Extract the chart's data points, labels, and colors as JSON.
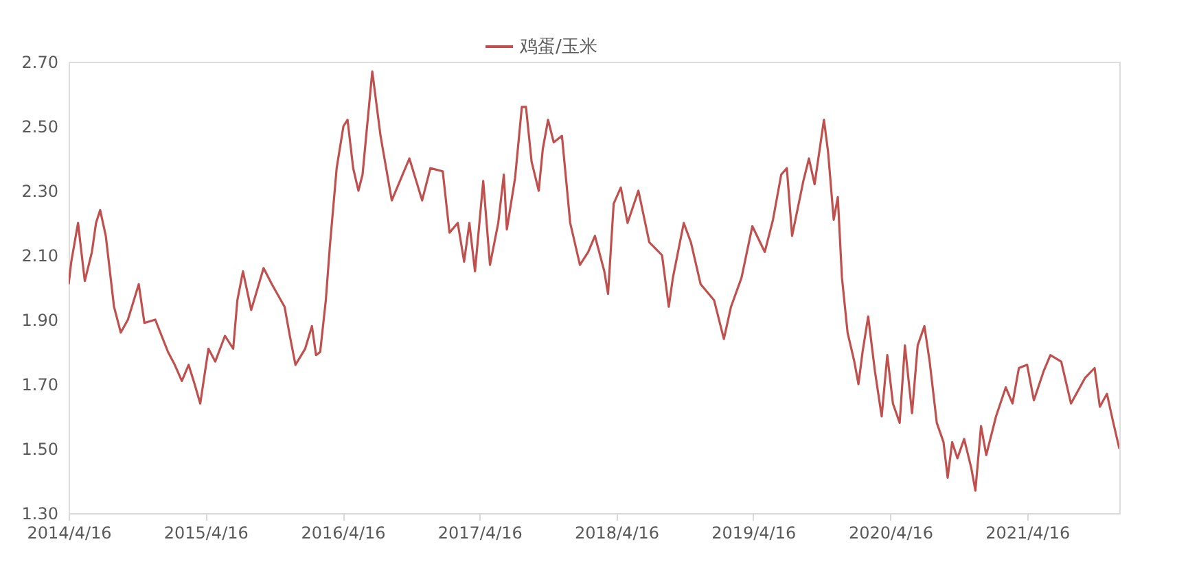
{
  "chart_data": {
    "type": "line",
    "legend": "top",
    "grid": false,
    "marker": "none",
    "line_style": "solid",
    "xlim": [
      "2014-04-16",
      "2021-12-18"
    ],
    "xticks": [
      {
        "value": "2014-04-16",
        "label": "2014/4/16"
      },
      {
        "value": "2015-04-16",
        "label": "2015/4/16"
      },
      {
        "value": "2016-04-16",
        "label": "2016/4/16"
      },
      {
        "value": "2017-04-16",
        "label": "2017/4/16"
      },
      {
        "value": "2018-04-16",
        "label": "2018/4/16"
      },
      {
        "value": "2019-04-16",
        "label": "2019/4/16"
      },
      {
        "value": "2020-04-16",
        "label": "2020/4/16"
      },
      {
        "value": "2021-04-16",
        "label": "2021/4/16"
      }
    ],
    "ylim": [
      1.3,
      2.7
    ],
    "yticks": [
      {
        "value": 1.3,
        "label": "1.30"
      },
      {
        "value": 1.5,
        "label": "1.50"
      },
      {
        "value": 1.7,
        "label": "1.70"
      },
      {
        "value": 1.9,
        "label": "1.90"
      },
      {
        "value": 2.1,
        "label": "2.10"
      },
      {
        "value": 2.3,
        "label": "2.30"
      },
      {
        "value": 2.5,
        "label": "2.50"
      },
      {
        "value": 2.7,
        "label": "2.70"
      }
    ],
    "x": [
      "2014-04-16",
      "2014-04-23",
      "2014-05-11",
      "2014-05-29",
      "2014-06-17",
      "2014-06-28",
      "2014-07-09",
      "2014-07-24",
      "2014-08-15",
      "2014-09-02",
      "2014-09-21",
      "2014-10-20",
      "2014-11-04",
      "2014-12-03",
      "2015-01-06",
      "2015-01-24",
      "2015-02-12",
      "2015-03-02",
      "2015-03-18",
      "2015-04-02",
      "2015-04-24",
      "2015-05-12",
      "2015-06-07",
      "2015-06-29",
      "2015-07-10",
      "2015-07-25",
      "2015-08-16",
      "2015-09-18",
      "2015-10-10",
      "2015-11-13",
      "2015-11-27",
      "2015-12-12",
      "2016-01-07",
      "2016-01-25",
      "2016-02-05",
      "2016-02-16",
      "2016-03-02",
      "2016-03-13",
      "2016-03-31",
      "2016-04-18",
      "2016-04-29",
      "2016-05-14",
      "2016-05-28",
      "2016-06-08",
      "2016-07-04",
      "2016-07-26",
      "2016-08-25",
      "2016-10-11",
      "2016-11-14",
      "2016-12-06",
      "2017-01-08",
      "2017-01-26",
      "2017-02-17",
      "2017-03-06",
      "2017-03-20",
      "2017-04-04",
      "2017-04-26",
      "2017-05-14",
      "2017-06-05",
      "2017-06-20",
      "2017-06-28",
      "2017-07-20",
      "2017-08-07",
      "2017-08-18",
      "2017-09-02",
      "2017-09-21",
      "2017-10-02",
      "2017-10-16",
      "2017-10-31",
      "2017-11-22",
      "2017-12-14",
      "2018-01-09",
      "2018-01-31",
      "2018-02-18",
      "2018-03-15",
      "2018-03-25",
      "2018-04-09",
      "2018-04-28",
      "2018-05-16",
      "2018-06-14",
      "2018-07-13",
      "2018-08-16",
      "2018-09-03",
      "2018-09-14",
      "2018-10-13",
      "2018-11-01",
      "2018-11-27",
      "2019-01-02",
      "2019-01-28",
      "2019-02-16",
      "2019-03-16",
      "2019-04-14",
      "2019-05-17",
      "2019-06-08",
      "2019-06-30",
      "2019-07-15",
      "2019-07-29",
      "2019-08-28",
      "2019-09-12",
      "2019-09-27",
      "2019-10-22",
      "2019-11-02",
      "2019-11-17",
      "2019-11-28",
      "2019-12-09",
      "2019-12-24",
      "2020-01-11",
      "2020-01-22",
      "2020-02-02",
      "2020-02-17",
      "2020-03-06",
      "2020-03-24",
      "2020-04-08",
      "2020-04-23",
      "2020-05-11",
      "2020-05-25",
      "2020-06-13",
      "2020-06-28",
      "2020-07-16",
      "2020-07-30",
      "2020-08-18",
      "2020-09-05",
      "2020-09-16",
      "2020-09-28",
      "2020-10-12",
      "2020-10-30",
      "2020-11-18",
      "2020-11-29",
      "2020-12-14",
      "2020-12-28",
      "2021-01-23",
      "2021-02-18",
      "2021-03-08",
      "2021-03-25",
      "2021-04-16",
      "2021-05-04",
      "2021-05-30",
      "2021-06-17",
      "2021-07-16",
      "2021-08-11",
      "2021-09-18",
      "2021-10-13",
      "2021-10-27",
      "2021-11-15",
      "2021-11-30",
      "2021-12-18"
    ],
    "series": [
      {
        "name": "鸡蛋/玉米",
        "color": "#c0504d",
        "values": [
          2.01,
          2.08,
          2.2,
          2.02,
          2.11,
          2.2,
          2.24,
          2.16,
          1.94,
          1.86,
          1.9,
          2.01,
          1.89,
          1.9,
          1.8,
          1.76,
          1.71,
          1.76,
          1.7,
          1.64,
          1.81,
          1.77,
          1.85,
          1.81,
          1.96,
          2.05,
          1.93,
          2.06,
          2.01,
          1.94,
          1.85,
          1.76,
          1.81,
          1.88,
          1.79,
          1.8,
          1.96,
          2.13,
          2.37,
          2.5,
          2.52,
          2.37,
          2.3,
          2.35,
          2.67,
          2.47,
          2.27,
          2.4,
          2.27,
          2.37,
          2.36,
          2.17,
          2.2,
          2.08,
          2.2,
          2.05,
          2.33,
          2.07,
          2.2,
          2.35,
          2.18,
          2.34,
          2.56,
          2.56,
          2.39,
          2.3,
          2.43,
          2.52,
          2.45,
          2.47,
          2.2,
          2.07,
          2.11,
          2.16,
          2.05,
          1.98,
          2.26,
          2.31,
          2.2,
          2.3,
          2.14,
          2.1,
          1.94,
          2.03,
          2.2,
          2.14,
          2.01,
          1.96,
          1.84,
          1.94,
          2.03,
          2.19,
          2.11,
          2.21,
          2.35,
          2.37,
          2.16,
          2.33,
          2.4,
          2.32,
          2.52,
          2.42,
          2.21,
          2.28,
          2.03,
          1.86,
          1.77,
          1.7,
          1.8,
          1.91,
          1.74,
          1.6,
          1.79,
          1.64,
          1.58,
          1.82,
          1.61,
          1.82,
          1.88,
          1.77,
          1.58,
          1.52,
          1.41,
          1.52,
          1.47,
          1.53,
          1.44,
          1.37,
          1.57,
          1.48,
          1.6,
          1.69,
          1.64,
          1.75,
          1.76,
          1.65,
          1.74,
          1.79,
          1.77,
          1.64,
          1.72,
          1.75,
          1.63,
          1.67,
          1.59,
          1.5
        ]
      }
    ]
  }
}
